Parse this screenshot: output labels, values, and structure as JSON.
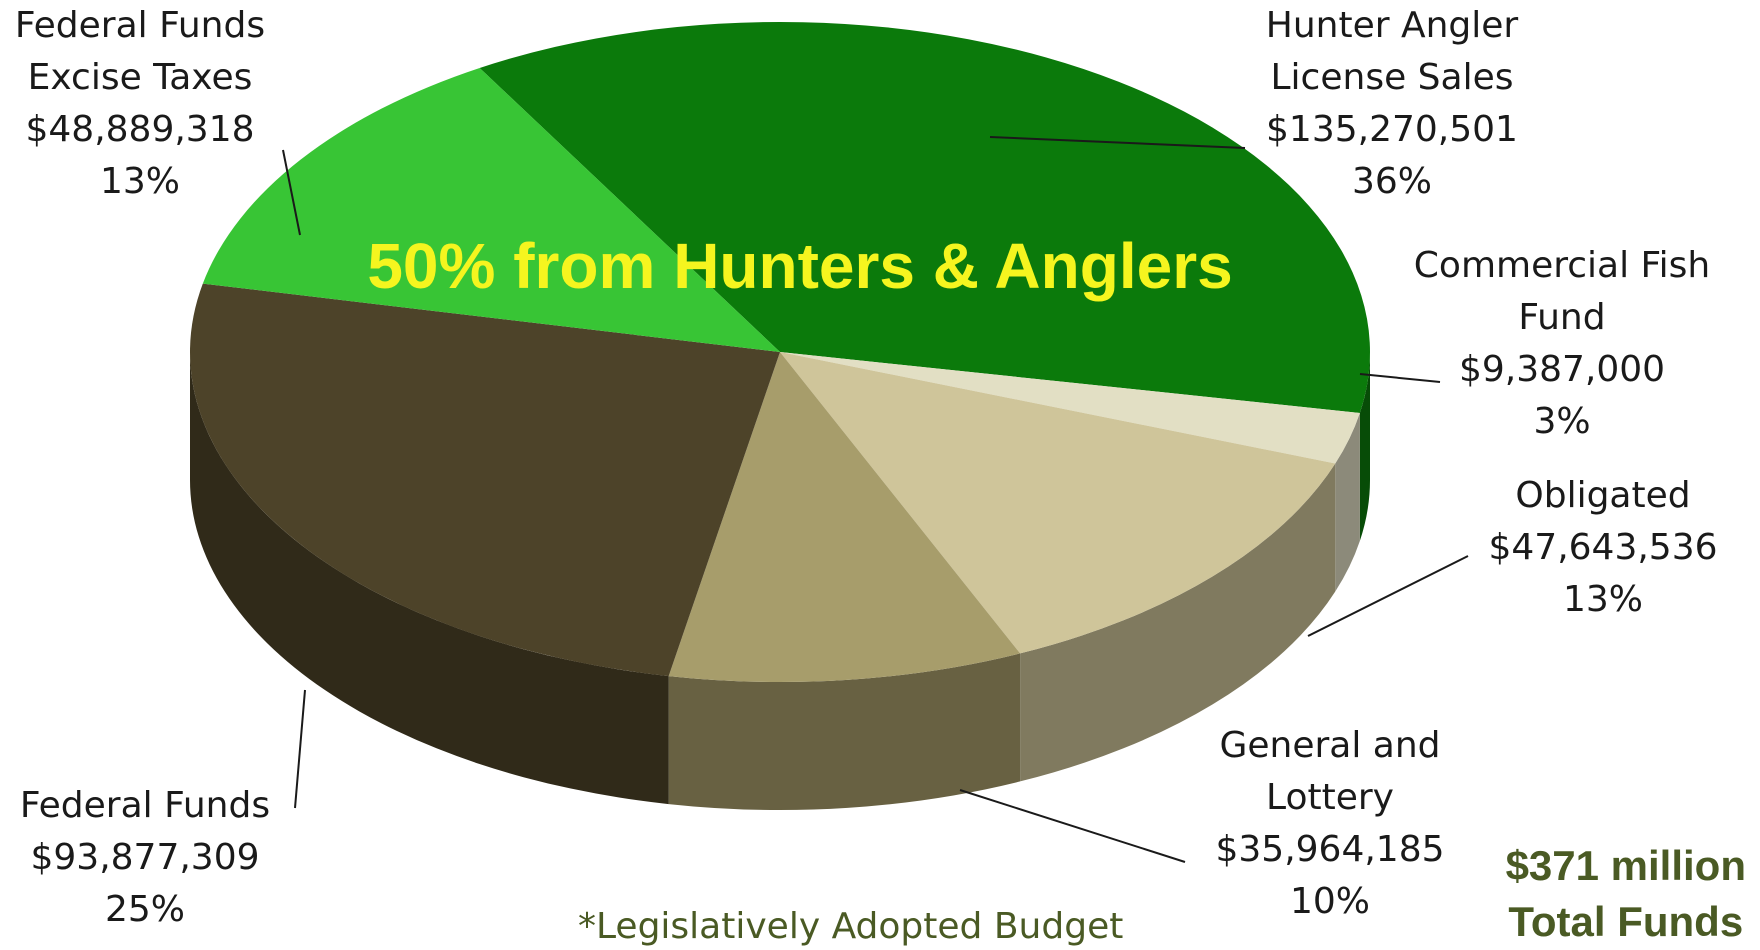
{
  "chart_data": {
    "type": "pie",
    "style": "3d",
    "slices": [
      {
        "label": [
          "Hunter Angler",
          "License Sales"
        ],
        "value": 135270501,
        "amount": "$135,270,501",
        "percent": "36%",
        "color": "#0b7a0b"
      },
      {
        "label": [
          "Commercial Fish",
          "Fund"
        ],
        "value": 9387000,
        "amount": "$9,387,000",
        "percent": "3%",
        "color": "#e2dfc4"
      },
      {
        "label": [
          "Obligated"
        ],
        "value": 47643536,
        "amount": "$47,643,536",
        "percent": "13%",
        "color": "#cfc59a"
      },
      {
        "label": [
          "General and",
          "Lottery"
        ],
        "value": 35964185,
        "amount": "$35,964,185",
        "percent": "10%",
        "color": "#a79d6b"
      },
      {
        "label": [
          "Federal Funds"
        ],
        "value": 93877309,
        "amount": "$93,877,309",
        "percent": "25%",
        "color": "#4d4329"
      },
      {
        "label": [
          "Federal Funds",
          "Excise Taxes"
        ],
        "value": 48889318,
        "amount": "$48,889,318",
        "percent": "13%",
        "color": "#38c535"
      }
    ],
    "highlight_text": "50% from Hunters & Anglers",
    "highlight_color": "#f5f51f",
    "total_line1": "$371 million",
    "total_line2": "Total Funds",
    "footnote": "*Legislatively Adopted Budget"
  }
}
